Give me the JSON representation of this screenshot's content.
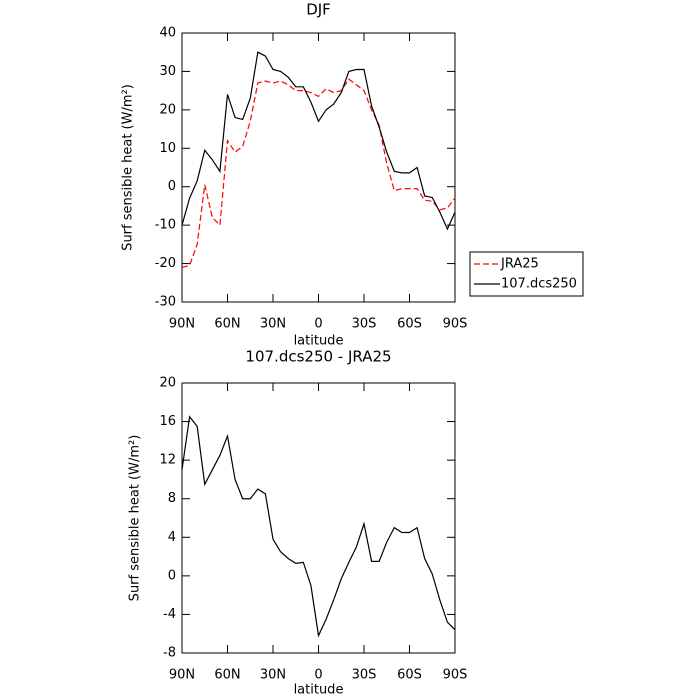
{
  "chart_data": [
    {
      "type": "line",
      "title": "DJF",
      "xlabel": "latitude",
      "ylabel": "Surf sensible heat (W/m²)",
      "x": [
        90,
        85,
        80,
        75,
        70,
        65,
        60,
        55,
        50,
        45,
        40,
        35,
        30,
        25,
        20,
        15,
        10,
        5,
        0,
        -5,
        -10,
        -15,
        -20,
        -25,
        -30,
        -35,
        -40,
        -45,
        -50,
        -55,
        -60,
        -65,
        -70,
        -75,
        -80,
        -85,
        -90
      ],
      "series": [
        {
          "name": "JRA25",
          "color": "#ff0000",
          "linestyle": "dashed",
          "values": [
            -21,
            -20.5,
            -15,
            0.5,
            -8,
            -10,
            12,
            9,
            10.5,
            17,
            27,
            27.5,
            27,
            27.5,
            26.5,
            25,
            25,
            24.5,
            23.5,
            25.5,
            24.5,
            25,
            28,
            26.5,
            25,
            20,
            16,
            6,
            -1,
            -0.5,
            -0.5,
            -0.5,
            -3.5,
            -3.8,
            -6,
            -5.5,
            -2.9
          ]
        },
        {
          "name": "107.dcs250",
          "color": "#000000",
          "linestyle": "solid",
          "values": [
            -10,
            -3,
            1.5,
            9.5,
            7,
            4,
            24,
            18,
            17.5,
            23,
            35,
            34,
            30.5,
            30,
            28.5,
            26,
            26,
            22,
            17,
            20,
            21.5,
            24.5,
            30,
            30.5,
            30.5,
            21,
            15.5,
            9,
            4,
            3.6,
            3.6,
            5,
            -2.4,
            -2.8,
            -6.6,
            -11,
            -6.6
          ]
        }
      ],
      "xlim": [
        90,
        -90
      ],
      "xticks": [
        {
          "value": 90,
          "label": "90N"
        },
        {
          "value": 60,
          "label": "60N"
        },
        {
          "value": 30,
          "label": "30N"
        },
        0,
        {
          "value": -30,
          "label": "30S"
        },
        {
          "value": -60,
          "label": "60S"
        },
        {
          "value": -90,
          "label": "90S"
        }
      ],
      "ylim": [
        -30,
        40
      ],
      "yticks": [
        -30,
        -20,
        -10,
        0,
        10,
        20,
        30,
        40
      ],
      "legend": "right"
    },
    {
      "type": "line",
      "title": "107.dcs250 - JRA25",
      "xlabel": "latitude",
      "ylabel": "Surf sensible heat (W/m²)",
      "x": [
        90,
        85,
        80,
        75,
        70,
        65,
        60,
        55,
        50,
        45,
        40,
        35,
        30,
        25,
        20,
        15,
        10,
        5,
        0,
        -5,
        -10,
        -15,
        -20,
        -25,
        -30,
        -35,
        -40,
        -45,
        -50,
        -55,
        -60,
        -65,
        -70,
        -75,
        -80,
        -85,
        -90
      ],
      "series": [
        {
          "name": null,
          "color": "#000000",
          "linestyle": "solid",
          "values": [
            11,
            16.5,
            15.5,
            9.5,
            11,
            12.5,
            14.5,
            10,
            8,
            8,
            9,
            8.5,
            3.8,
            2.5,
            1.8,
            1.3,
            1.4,
            -1,
            -6.2,
            -4.5,
            -2.5,
            -0.3,
            1.4,
            3,
            5.4,
            1.5,
            1.5,
            3.5,
            5,
            4.5,
            4.5,
            5,
            1.8,
            0.2,
            -2.5,
            -4.8,
            -5.6
          ]
        }
      ],
      "xlim": [
        90,
        -90
      ],
      "xticks": [
        {
          "value": 90,
          "label": "90N"
        },
        {
          "value": 60,
          "label": "60N"
        },
        {
          "value": 30,
          "label": "30N"
        },
        0,
        {
          "value": -30,
          "label": "30S"
        },
        {
          "value": -60,
          "label": "60S"
        },
        {
          "value": -90,
          "label": "90S"
        }
      ],
      "ylim": [
        -8,
        20
      ],
      "yticks": [
        -8,
        -4,
        0,
        4,
        8,
        12,
        16,
        20
      ]
    }
  ]
}
